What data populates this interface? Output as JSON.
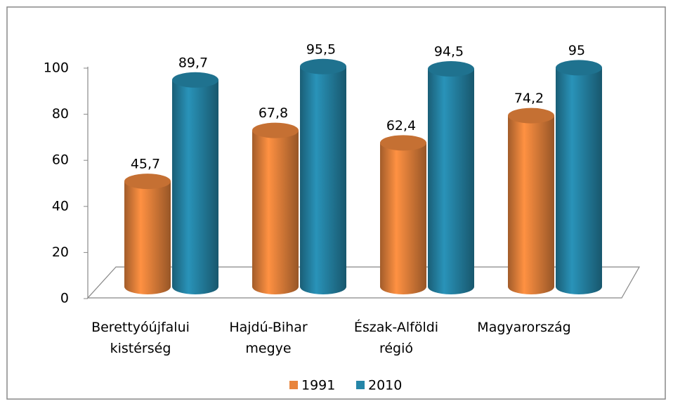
{
  "chart_data": {
    "type": "bar3d",
    "categories": [
      "Berettyóújfalui kistérség",
      "Hajdú-Bihar megye",
      "Észak-Alföldi régió",
      "Magyarország"
    ],
    "series": [
      {
        "name": "1991",
        "color": "#e8843c",
        "values": [
          45.7,
          67.8,
          62.4,
          74.2
        ],
        "value_labels": [
          "45,7",
          "67,8",
          "62,4",
          "74,2"
        ]
      },
      {
        "name": "2010",
        "color": "#2586a8",
        "values": [
          89.7,
          95.5,
          94.5,
          95
        ],
        "value_labels": [
          "89,7",
          "95,5",
          "94,5",
          "95"
        ]
      }
    ],
    "ylim": [
      0,
      100
    ],
    "yticks": [
      0,
      20,
      40,
      60,
      80,
      100
    ],
    "grid": false,
    "legend": "bottom"
  }
}
